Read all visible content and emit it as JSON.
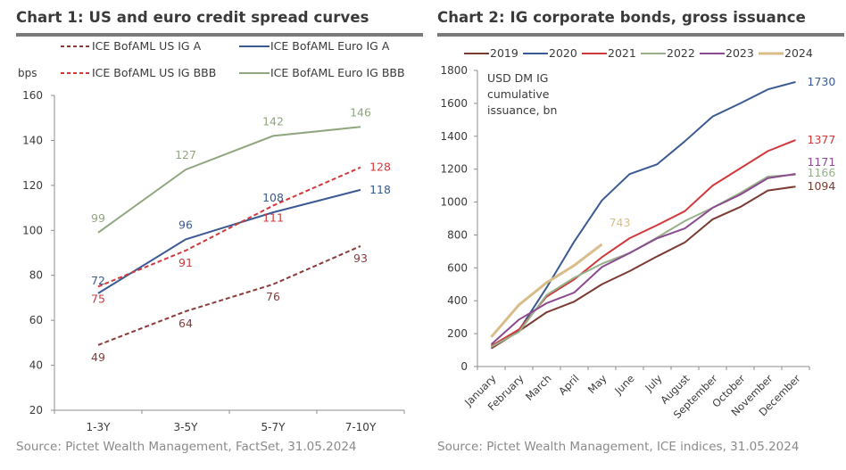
{
  "chart_data": [
    {
      "type": "line",
      "title": "Chart 1: US and euro credit spread curves",
      "ylabel": "bps",
      "xlabel": "",
      "categories": [
        "1-3Y",
        "3-5Y",
        "5-7Y",
        "7-10Y"
      ],
      "ylim": [
        20,
        160
      ],
      "yticks": [
        20,
        40,
        60,
        80,
        100,
        120,
        140,
        160
      ],
      "grid": false,
      "legend": "top",
      "series": [
        {
          "name": "ICE BofAML US IG A",
          "color": "#8b3a3a",
          "dash": true,
          "values": [
            49,
            64,
            76,
            93
          ],
          "labels": [
            "49",
            "64",
            "76",
            "93"
          ]
        },
        {
          "name": "ICE BofAML Euro IG A",
          "color": "#3b5a94",
          "dash": false,
          "values": [
            72,
            96,
            108,
            118
          ],
          "labels": [
            "72",
            "96",
            "108",
            "118"
          ]
        },
        {
          "name": "ICE BofAML US IG BBB",
          "color": "#d0393b",
          "dash": true,
          "values": [
            75,
            91,
            111,
            128
          ],
          "labels": [
            "75",
            "91",
            "111",
            "128"
          ]
        },
        {
          "name": "ICE BofAML Euro IG BBB",
          "color": "#8fa67e",
          "dash": false,
          "values": [
            99,
            127,
            142,
            146
          ],
          "labels": [
            "99",
            "127",
            "142",
            "146"
          ]
        }
      ],
      "source": "Source: Pictet Wealth Management, FactSet, 31.05.2024"
    },
    {
      "type": "line",
      "title": "Chart 2: IG corporate bonds, gross issuance",
      "annotation": [
        "USD DM IG",
        "cumulative",
        "issuance, bn"
      ],
      "xlabel": "",
      "ylabel": "",
      "categories": [
        "January",
        "February",
        "March",
        "April",
        "May",
        "June",
        "July",
        "August",
        "September",
        "October",
        "November",
        "December"
      ],
      "ylim": [
        0,
        1800
      ],
      "yticks": [
        0,
        200,
        400,
        600,
        800,
        1000,
        1200,
        1400,
        1600,
        1800
      ],
      "grid": false,
      "legend": "top",
      "series": [
        {
          "name": "2019",
          "color": "#7a3b33",
          "values": [
            110,
            215,
            330,
            395,
            500,
            580,
            670,
            755,
            895,
            970,
            1070,
            1094
          ],
          "end_label": "1094"
        },
        {
          "name": "2020",
          "color": "#3b5a94",
          "values": [
            125,
            220,
            480,
            760,
            1010,
            1170,
            1230,
            1370,
            1520,
            1600,
            1685,
            1730
          ],
          "end_label": "1730"
        },
        {
          "name": "2021",
          "color": "#d0393b",
          "values": [
            125,
            225,
            425,
            530,
            665,
            780,
            860,
            945,
            1100,
            1205,
            1310,
            1377
          ],
          "end_label": "1377"
        },
        {
          "name": "2022",
          "color": "#97b08a",
          "values": [
            120,
            210,
            435,
            540,
            625,
            690,
            785,
            885,
            965,
            1055,
            1155,
            1166
          ],
          "end_label": "1166"
        },
        {
          "name": "2023",
          "color": "#8b4a8f",
          "values": [
            135,
            285,
            385,
            450,
            605,
            690,
            780,
            840,
            965,
            1045,
            1145,
            1171
          ],
          "end_label": "1171"
        },
        {
          "name": "2024",
          "color": "#d8bd8a",
          "values": [
            180,
            375,
            510,
            615,
            743
          ],
          "end_label": "743"
        }
      ],
      "source": "Source: Pictet Wealth Management, ICE indices, 31.05.2024"
    }
  ]
}
